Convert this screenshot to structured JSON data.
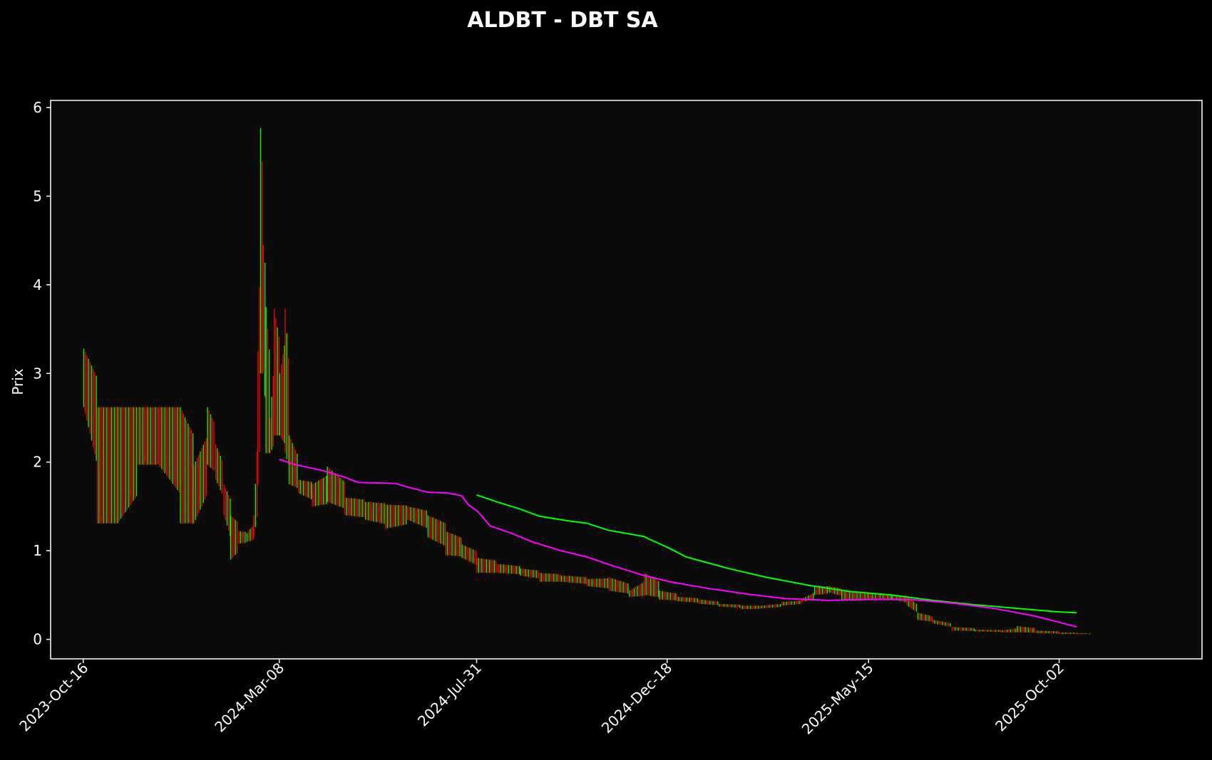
{
  "chart_data": {
    "type": "candlestick",
    "title": "ALDBT - DBT SA",
    "xlabel": "",
    "ylabel": "Prix",
    "x_ticks": [
      "2023-Oct-16",
      "2024-Mar-08",
      "2024-Jul-31",
      "2024-Dec-18",
      "2025-May-15",
      "2025-Oct-02"
    ],
    "y_ticks": [
      0,
      1,
      2,
      3,
      4,
      5,
      6
    ],
    "ylim": [
      -0.22,
      6.08
    ],
    "xlim": [
      "2023-Sep-22",
      "2026-Jan-15"
    ],
    "grid": false,
    "legend": "none",
    "colors": {
      "background": "#000000",
      "plot_background": "#0b0b0b",
      "frame": "#ffffff",
      "text": "#ffffff",
      "up": "#00ff00",
      "down": "#ff0000",
      "ma_long": "#00ff00",
      "ma_short": "#ff00ff"
    },
    "price_series": [
      {
        "date": "2023-Oct-16",
        "high": 3.28,
        "low": 2.62
      },
      {
        "date": "2023-Oct-26",
        "high": 2.62,
        "low": 1.31
      },
      {
        "date": "2023-Nov-10",
        "high": 2.62,
        "low": 1.31
      },
      {
        "date": "2023-Nov-25",
        "high": 2.62,
        "low": 1.97
      },
      {
        "date": "2023-Dec-10",
        "high": 2.62,
        "low": 1.97
      },
      {
        "date": "2023-Dec-26",
        "high": 2.62,
        "low": 1.31
      },
      {
        "date": "2024-Jan-05",
        "high": 1.97,
        "low": 1.31
      },
      {
        "date": "2024-Jan-15",
        "high": 2.62,
        "low": 1.97
      },
      {
        "date": "2024-Jan-21",
        "high": 2.2,
        "low": 1.8
      },
      {
        "date": "2024-Jan-27",
        "high": 1.75,
        "low": 1.4
      },
      {
        "date": "2024-Feb-01",
        "high": 1.4,
        "low": 0.9
      },
      {
        "date": "2024-Feb-07",
        "high": 1.22,
        "low": 1.08
      },
      {
        "date": "2024-Feb-13",
        "high": 1.2,
        "low": 1.1
      },
      {
        "date": "2024-Feb-18",
        "high": 1.4,
        "low": 1.15
      },
      {
        "date": "2024-Feb-21",
        "high": 3.25,
        "low": 1.75
      },
      {
        "date": "2024-Feb-23",
        "high": 5.77,
        "low": 3.0
      },
      {
        "date": "2024-Feb-25",
        "high": 4.45,
        "low": 3.0
      },
      {
        "date": "2024-Feb-27",
        "high": 3.75,
        "low": 2.1
      },
      {
        "date": "2024-Mar-01",
        "high": 2.5,
        "low": 2.1
      },
      {
        "date": "2024-Mar-04",
        "high": 3.73,
        "low": 2.3
      },
      {
        "date": "2024-Mar-08",
        "high": 3.0,
        "low": 2.3
      },
      {
        "date": "2024-Mar-12",
        "high": 3.73,
        "low": 2.1
      },
      {
        "date": "2024-Mar-15",
        "high": 2.3,
        "low": 1.75
      },
      {
        "date": "2024-Mar-22",
        "high": 1.8,
        "low": 1.65
      },
      {
        "date": "2024-Apr-01",
        "high": 1.75,
        "low": 1.5
      },
      {
        "date": "2024-Apr-12",
        "high": 1.95,
        "low": 1.55
      },
      {
        "date": "2024-Apr-25",
        "high": 1.6,
        "low": 1.4
      },
      {
        "date": "2024-May-10",
        "high": 1.55,
        "low": 1.35
      },
      {
        "date": "2024-May-25",
        "high": 1.52,
        "low": 1.25
      },
      {
        "date": "2024-Jun-10",
        "high": 1.5,
        "low": 1.35
      },
      {
        "date": "2024-Jun-25",
        "high": 1.4,
        "low": 1.15
      },
      {
        "date": "2024-Jul-08",
        "high": 1.22,
        "low": 0.95
      },
      {
        "date": "2024-Jul-20",
        "high": 1.07,
        "low": 0.92
      },
      {
        "date": "2024-Jul-31",
        "high": 0.92,
        "low": 0.75
      },
      {
        "date": "2024-Aug-15",
        "high": 0.85,
        "low": 0.75
      },
      {
        "date": "2024-Sep-01",
        "high": 0.8,
        "low": 0.72
      },
      {
        "date": "2024-Sep-15",
        "high": 0.75,
        "low": 0.65
      },
      {
        "date": "2024-Oct-01",
        "high": 0.72,
        "low": 0.65
      },
      {
        "date": "2024-Oct-20",
        "high": 0.68,
        "low": 0.6
      },
      {
        "date": "2024-Nov-05",
        "high": 0.7,
        "low": 0.55
      },
      {
        "date": "2024-Nov-20",
        "high": 0.55,
        "low": 0.48
      },
      {
        "date": "2024-Dec-01",
        "high": 0.75,
        "low": 0.5
      },
      {
        "date": "2024-Dec-12",
        "high": 0.55,
        "low": 0.45
      },
      {
        "date": "2024-Dec-25",
        "high": 0.48,
        "low": 0.43
      },
      {
        "date": "2025-Jan-10",
        "high": 0.45,
        "low": 0.4
      },
      {
        "date": "2025-Jan-25",
        "high": 0.4,
        "low": 0.37
      },
      {
        "date": "2025-Feb-10",
        "high": 0.38,
        "low": 0.34
      },
      {
        "date": "2025-Feb-25",
        "high": 0.38,
        "low": 0.35
      },
      {
        "date": "2025-Mar-12",
        "high": 0.42,
        "low": 0.38
      },
      {
        "date": "2025-Mar-27",
        "high": 0.46,
        "low": 0.42
      },
      {
        "date": "2025-Apr-05",
        "high": 0.6,
        "low": 0.5
      },
      {
        "date": "2025-Apr-15",
        "high": 0.6,
        "low": 0.53
      },
      {
        "date": "2025-Apr-25",
        "high": 0.55,
        "low": 0.45
      },
      {
        "date": "2025-May-05",
        "high": 0.53,
        "low": 0.45
      },
      {
        "date": "2025-May-15",
        "high": 0.52,
        "low": 0.46
      },
      {
        "date": "2025-Jun-01",
        "high": 0.5,
        "low": 0.45
      },
      {
        "date": "2025-Jun-12",
        "high": 0.48,
        "low": 0.38
      },
      {
        "date": "2025-Jun-20",
        "high": 0.3,
        "low": 0.22
      },
      {
        "date": "2025-Jul-01",
        "high": 0.22,
        "low": 0.18
      },
      {
        "date": "2025-Jul-15",
        "high": 0.14,
        "low": 0.1
      },
      {
        "date": "2025-Aug-01",
        "high": 0.11,
        "low": 0.09
      },
      {
        "date": "2025-Aug-20",
        "high": 0.1,
        "low": 0.08
      },
      {
        "date": "2025-Sep-01",
        "high": 0.15,
        "low": 0.08
      },
      {
        "date": "2025-Sep-15",
        "high": 0.1,
        "low": 0.07
      },
      {
        "date": "2025-Oct-02",
        "high": 0.08,
        "low": 0.06
      },
      {
        "date": "2025-Oct-15",
        "high": 0.07,
        "low": 0.06
      }
    ],
    "series": [
      {
        "points": [
          [
            "2024-Jul-31",
            1.63
          ],
          [
            "2024-Aug-15",
            1.55
          ],
          [
            "2024-Sep-01",
            1.47
          ],
          [
            "2024-Sep-15",
            1.39
          ],
          [
            "2024-Oct-05",
            1.34
          ],
          [
            "2024-Oct-20",
            1.31
          ],
          [
            "2024-Nov-05",
            1.23
          ],
          [
            "2024-Nov-20",
            1.19
          ],
          [
            "2024-Dec-01",
            1.16
          ],
          [
            "2024-Dec-05",
            1.13
          ],
          [
            "2024-Dec-18",
            1.04
          ],
          [
            "2025-Jan-01",
            0.93
          ],
          [
            "2025-Feb-01",
            0.8
          ],
          [
            "2025-Mar-01",
            0.7
          ],
          [
            "2025-Apr-01",
            0.61
          ],
          [
            "2025-May-01",
            0.54
          ],
          [
            "2025-Jun-01",
            0.5
          ],
          [
            "2025-Jul-01",
            0.44
          ],
          [
            "2025-Aug-01",
            0.39
          ],
          [
            "2025-Sep-01",
            0.35
          ],
          [
            "2025-Oct-01",
            0.31
          ],
          [
            "2025-Oct-15",
            0.3
          ]
        ]
      },
      {
        "points": [
          [
            "2024-Mar-08",
            2.03
          ],
          [
            "2024-Mar-20",
            1.97
          ],
          [
            "2024-Apr-10",
            1.9
          ],
          [
            "2024-Apr-25",
            1.83
          ],
          [
            "2024-May-05",
            1.77
          ],
          [
            "2024-Jun-01",
            1.76
          ],
          [
            "2024-Jun-10",
            1.72
          ],
          [
            "2024-Jun-25",
            1.66
          ],
          [
            "2024-Jul-10",
            1.65
          ],
          [
            "2024-Jul-20",
            1.62
          ],
          [
            "2024-Jul-25",
            1.52
          ],
          [
            "2024-Aug-01",
            1.44
          ],
          [
            "2024-Aug-10",
            1.28
          ],
          [
            "2024-Aug-25",
            1.2
          ],
          [
            "2024-Sep-10",
            1.1
          ],
          [
            "2024-Oct-01",
            1.0
          ],
          [
            "2024-Oct-20",
            0.93
          ],
          [
            "2024-Nov-10",
            0.82
          ],
          [
            "2024-Dec-01",
            0.72
          ],
          [
            "2024-Dec-20",
            0.65
          ],
          [
            "2025-Jan-15",
            0.58
          ],
          [
            "2025-Feb-15",
            0.51
          ],
          [
            "2025-Mar-15",
            0.46
          ],
          [
            "2025-Apr-15",
            0.44
          ],
          [
            "2025-May-15",
            0.45
          ],
          [
            "2025-Jun-15",
            0.45
          ],
          [
            "2025-Jul-15",
            0.41
          ],
          [
            "2025-Aug-15",
            0.35
          ],
          [
            "2025-Sep-15",
            0.26
          ],
          [
            "2025-Oct-15",
            0.14
          ]
        ]
      }
    ]
  }
}
